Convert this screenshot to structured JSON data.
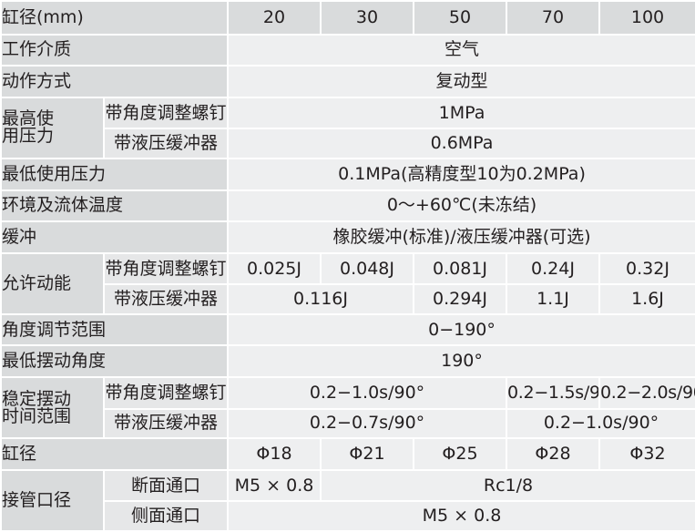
{
  "header": {
    "label": "缸径(mm)",
    "bores": [
      "20",
      "30",
      "50",
      "70",
      "100"
    ]
  },
  "rows": {
    "medium": {
      "label": "工作介质",
      "value": "空气"
    },
    "action": {
      "label": "动作方式",
      "value": "复动型"
    },
    "max_pressure": {
      "label_line1": "最高使",
      "label_line2": "用压力",
      "sub1": "带角度调整螺钉",
      "val1": "1MPa",
      "sub2": "带液压缓冲器",
      "val2": "0.6MPa"
    },
    "min_pressure": {
      "label": "最低使用压力",
      "value": "0.1MPa(高精度型10为0.2MPa)"
    },
    "temperature": {
      "label": "环境及流体温度",
      "value": "0～+60℃(未冻结)"
    },
    "cushion": {
      "label": "缓冲",
      "value": "橡胶缓冲(标准)/液压缓冲器(可选)"
    },
    "kinetic": {
      "label": "允许动能",
      "sub1": "带角度调整螺钉",
      "vals1": [
        "0.025J",
        "0.048J",
        "0.081J",
        "0.24J",
        "0.32J"
      ],
      "sub2": "带液压缓冲器",
      "vals2": [
        "0.116J",
        "0.294J",
        "1.1J",
        "1.6J"
      ]
    },
    "angle_range": {
      "label": "角度调节范围",
      "value": "0−190°"
    },
    "min_swing": {
      "label": "最低摆动角度",
      "value": "190°"
    },
    "swing_time": {
      "label_line1": "稳定摆动",
      "label_line2": "时间范围",
      "sub1": "带角度调整螺钉",
      "vals1": [
        "0.2−1.0s/90°",
        "0.2−1.5s/90°",
        "0.2−2.0s/90°"
      ],
      "sub2": "带液压缓冲器",
      "vals2": [
        "0.2−0.7s/90°",
        "0.2−1.0s/90°"
      ]
    },
    "bore_phi": {
      "label": "缸径",
      "vals": [
        "Φ18",
        "Φ21",
        "Φ25",
        "Φ28",
        "Φ32"
      ]
    },
    "port": {
      "label": "接管口径",
      "sub1": "断面通口",
      "vals1": [
        "M5 × 0.8",
        "Rc1/8"
      ],
      "sub2": "侧面通口",
      "val2": "M5 × 0.8"
    }
  }
}
